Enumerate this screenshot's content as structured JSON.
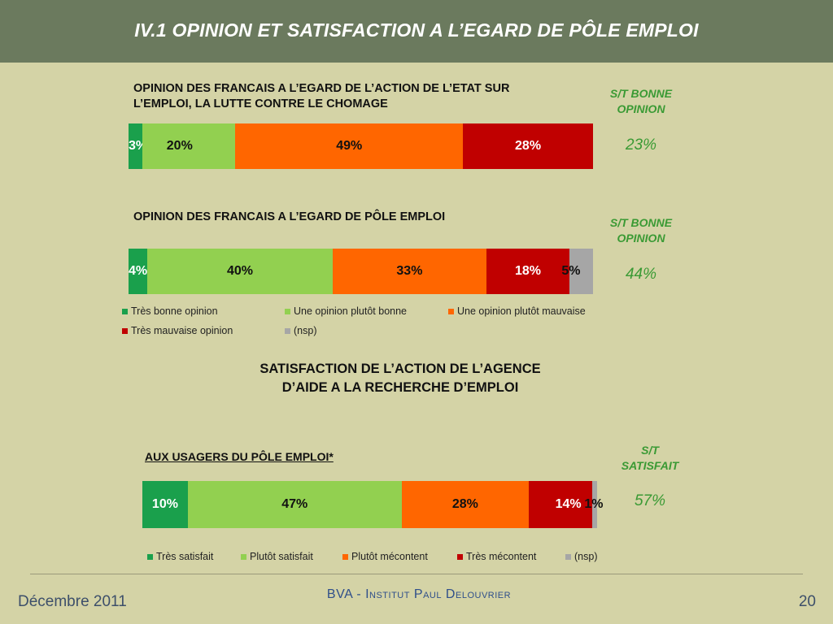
{
  "header": {
    "title": "IV.1 OPINION ET SATISFACTION A L’EGARD DE PÔLE EMPLOI"
  },
  "colors": {
    "very_good": "#1aa04c",
    "rather_good": "#92d050",
    "rather_bad": "#ff6600",
    "very_bad": "#c00000",
    "nsp": "#a6a6a6",
    "header_bg": "#6b7a5e",
    "slide_bg": "#d4d3a6",
    "st_green": "#3a9a34"
  },
  "section1": {
    "title_line1": "OPINION DES FRANCAIS A L’EGARD DE L’ACTION DE L’ETAT SUR",
    "title_line2": "L’EMPLOI, LA LUTTE CONTRE LE CHOMAGE",
    "st_head_line1": "S/T BONNE",
    "st_head_line2": "OPINION",
    "st_value": "23%"
  },
  "section2": {
    "title": "OPINION DES FRANCAIS A L’EGARD DE PÔLE EMPLOI",
    "st_head_line1": "S/T BONNE",
    "st_head_line2": "OPINION",
    "st_value": "44%"
  },
  "legend1": {
    "items": [
      "Très bonne opinion",
      "Une opinion plutôt bonne",
      "Une opinion plutôt mauvaise",
      "Très mauvaise opinion",
      "(nsp)"
    ]
  },
  "section3": {
    "title_line1": "SATISFACTION DE L’ACTION DE L’AGENCE",
    "title_line2": "D’AIDE A LA RECHERCHE D’EMPLOI",
    "subtitle": "AUX USAGERS DU PÔLE EMPLOI*",
    "st_head_line1": "S/T",
    "st_head_line2": "SATISFAIT",
    "st_value": "57%"
  },
  "legend2": {
    "items": [
      "Très satisfait",
      "Plutôt satisfait",
      "Plutôt mécontent",
      "Très mécontent",
      "(nsp)"
    ]
  },
  "footer": {
    "left": "Décembre 2011",
    "center": "BVA - Institut Paul Delouvrier",
    "right": "20"
  },
  "chart_data": [
    {
      "type": "bar",
      "orientation": "horizontal-stacked-100",
      "title": "OPINION DES FRANCAIS A L’EGARD DE L’ACTION DE L’ETAT SUR L’EMPLOI, LA LUTTE CONTRE LE CHOMAGE",
      "series": [
        {
          "name": "Très bonne opinion",
          "values": [
            3
          ],
          "label": "3%"
        },
        {
          "name": "Une opinion plutôt bonne",
          "values": [
            20
          ],
          "label": "20%"
        },
        {
          "name": "Une opinion plutôt mauvaise",
          "values": [
            49
          ],
          "label": "49%"
        },
        {
          "name": "Très mauvaise opinion",
          "values": [
            28
          ],
          "label": "28%"
        }
      ]
    },
    {
      "type": "bar",
      "orientation": "horizontal-stacked-100",
      "title": "OPINION DES FRANCAIS A L’EGARD DE PÔLE EMPLOI",
      "series": [
        {
          "name": "Très bonne opinion",
          "values": [
            4
          ],
          "label": "4%"
        },
        {
          "name": "Une opinion plutôt bonne",
          "values": [
            40
          ],
          "label": "40%"
        },
        {
          "name": "Une opinion plutôt mauvaise",
          "values": [
            33
          ],
          "label": "33%"
        },
        {
          "name": "Très mauvaise opinion",
          "values": [
            18
          ],
          "label": "18%"
        },
        {
          "name": "(nsp)",
          "values": [
            5
          ],
          "label": "5%"
        }
      ]
    },
    {
      "type": "bar",
      "orientation": "horizontal-stacked-100",
      "title": "AUX USAGERS DU PÔLE EMPLOI*",
      "series": [
        {
          "name": "Très satisfait",
          "values": [
            10
          ],
          "label": "10%"
        },
        {
          "name": "Plutôt satisfait",
          "values": [
            47
          ],
          "label": "47%"
        },
        {
          "name": "Plutôt mécontent",
          "values": [
            28
          ],
          "label": "28%"
        },
        {
          "name": "Très mécontent",
          "values": [
            14
          ],
          "label": "14%"
        },
        {
          "name": "(nsp)",
          "values": [
            1
          ],
          "label": "1%"
        }
      ]
    }
  ]
}
